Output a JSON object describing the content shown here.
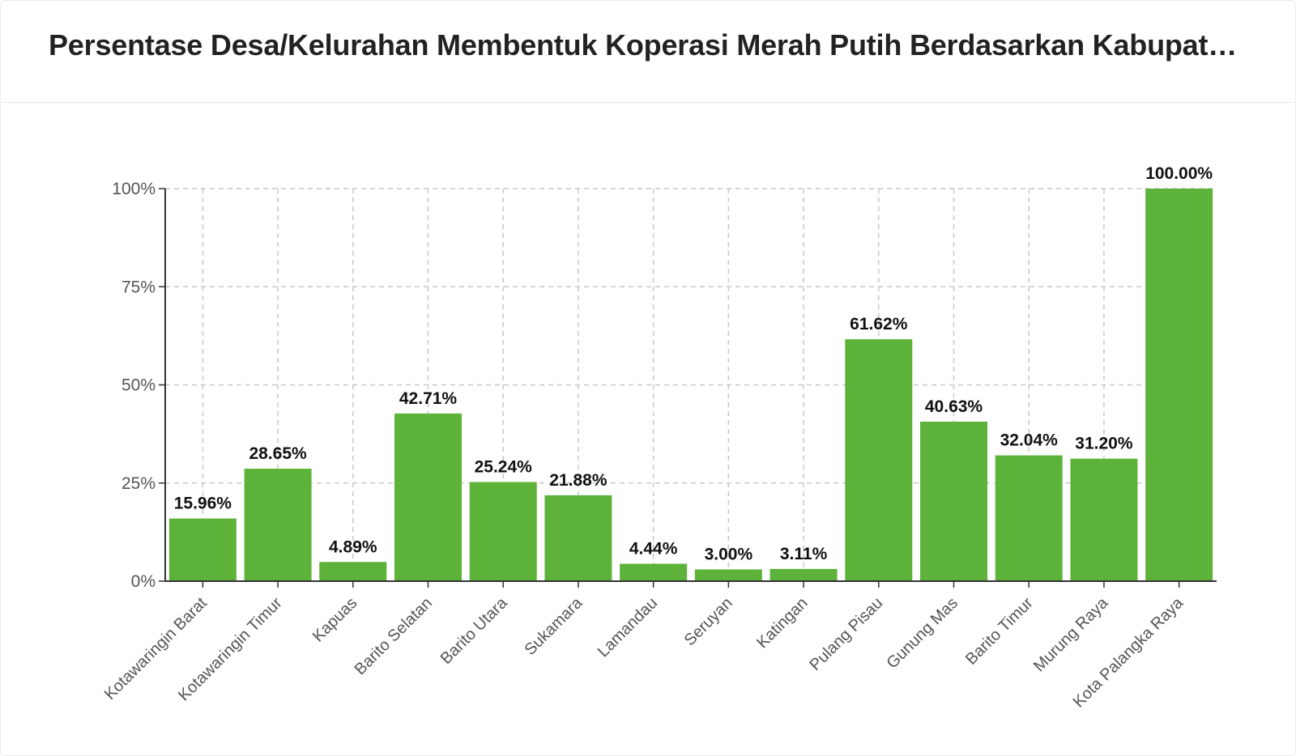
{
  "title": "Persentase Desa/Kelurahan Membentuk Koperasi Merah Putih Berdasarkan Kabupat…",
  "colors": {
    "bar": "#5db33a",
    "grid": "#c8c8c8",
    "axis": "#333333"
  },
  "chart_data": {
    "type": "bar",
    "categories": [
      "Kotawaringin Barat",
      "Kotawaringin Timur",
      "Kapuas",
      "Barito Selatan",
      "Barito Utara",
      "Sukamara",
      "Lamandau",
      "Seruyan",
      "Katingan",
      "Pulang Pisau",
      "Gunung Mas",
      "Barito Timur",
      "Murung Raya",
      "Kota Palangka Raya"
    ],
    "values": [
      15.96,
      28.65,
      4.89,
      42.71,
      25.24,
      21.88,
      4.44,
      3.0,
      3.11,
      61.62,
      40.63,
      32.04,
      31.2,
      100.0
    ],
    "data_labels": [
      "15.96%",
      "28.65%",
      "4.89%",
      "42.71%",
      "25.24%",
      "21.88%",
      "4.44%",
      "3.00%",
      "3.11%",
      "61.62%",
      "40.63%",
      "32.04%",
      "31.20%",
      "100.00%"
    ],
    "yticks": [
      0,
      25,
      50,
      75,
      100
    ],
    "ytick_labels": [
      "0%",
      "25%",
      "50%",
      "75%",
      "100%"
    ],
    "ylim": [
      0,
      100
    ],
    "grid": true,
    "legend": "none",
    "xlabel": "",
    "ylabel": ""
  }
}
